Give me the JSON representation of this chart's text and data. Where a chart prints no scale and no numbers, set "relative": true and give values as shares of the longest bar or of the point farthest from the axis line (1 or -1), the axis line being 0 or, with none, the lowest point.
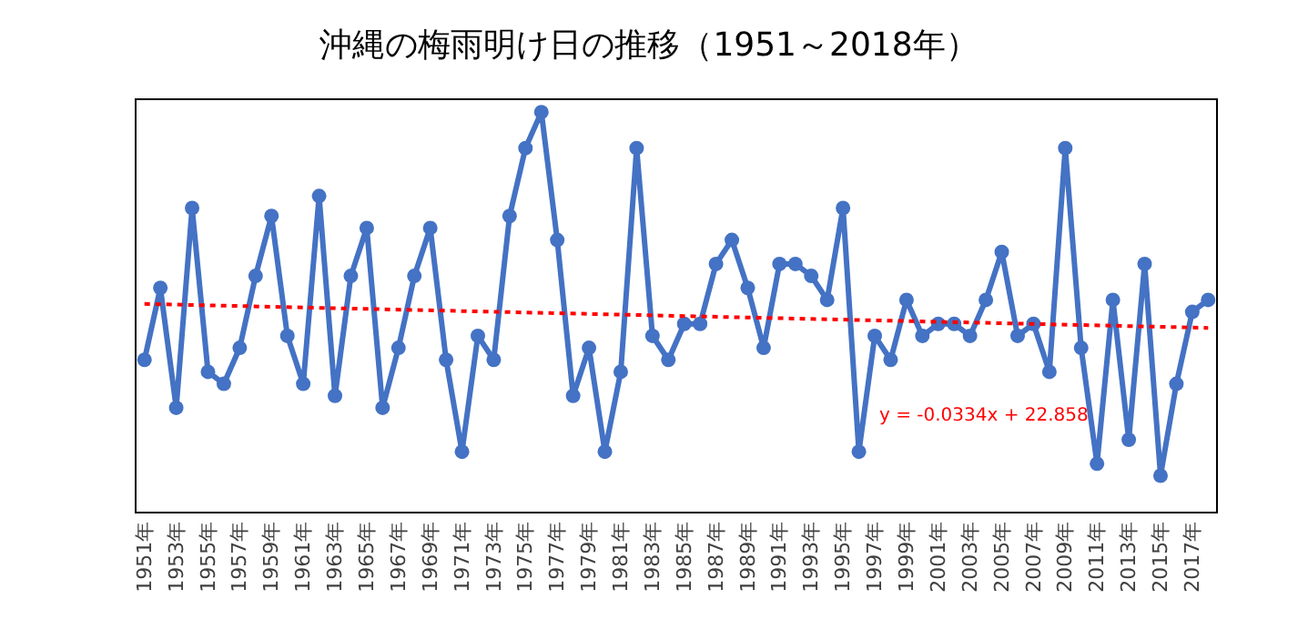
{
  "chart_data": {
    "type": "line",
    "title": "沖縄の梅雨明け日の推移（1951～2018年）",
    "categories": [
      "1951年",
      null,
      "1953年",
      null,
      "1955年",
      null,
      "1957年",
      null,
      "1959年",
      null,
      "1961年",
      null,
      "1963年",
      null,
      "1965年",
      null,
      "1967年",
      null,
      "1969年",
      null,
      "1971年",
      null,
      "1973年",
      null,
      "1975年",
      null,
      "1977年",
      null,
      "1979年",
      null,
      "1981年",
      null,
      "1983年",
      null,
      "1985年",
      null,
      "1987年",
      null,
      "1989年",
      null,
      "1991年",
      null,
      "1993年",
      null,
      "1995年",
      null,
      "1997年",
      null,
      "1999年",
      null,
      "2001年",
      null,
      "2003年",
      null,
      "2005年",
      null,
      "2007年",
      null,
      "2009年",
      null,
      "2011年",
      null,
      "2013年",
      null,
      "2015年",
      null,
      "2017年",
      null
    ],
    "relative": true,
    "series": [
      {
        "color": "#4472c4",
        "marker": "circle",
        "line_style": "solid",
        "values": [
          0.38,
          0.56,
          0.26,
          0.76,
          0.35,
          0.32,
          0.41,
          0.59,
          0.74,
          0.44,
          0.32,
          0.79,
          0.29,
          0.59,
          0.71,
          0.26,
          0.41,
          0.59,
          0.71,
          0.38,
          0.15,
          0.44,
          0.38,
          0.74,
          0.91,
          1,
          0.68,
          0.29,
          0.41,
          0.15,
          0.35,
          0.91,
          0.44,
          0.38,
          0.47,
          0.47,
          0.62,
          0.68,
          0.56,
          0.41,
          0.62,
          0.62,
          0.59,
          0.53,
          0.76,
          0.15,
          0.44,
          0.38,
          0.53,
          0.44,
          0.47,
          0.47,
          0.44,
          0.53,
          0.65,
          0.44,
          0.47,
          0.35,
          0.91,
          0.41,
          0.12,
          0.53,
          0.18,
          0.62,
          0.09,
          0.32,
          0.5,
          0.53
        ]
      },
      {
        "color": "#ff0000",
        "marker": "none",
        "line_style": "dotted",
        "values": [
          0.52,
          null,
          null,
          null,
          null,
          null,
          null,
          null,
          null,
          null,
          null,
          null,
          null,
          null,
          null,
          null,
          null,
          null,
          null,
          null,
          null,
          null,
          null,
          null,
          null,
          null,
          null,
          null,
          null,
          null,
          null,
          null,
          null,
          null,
          null,
          null,
          null,
          null,
          null,
          null,
          null,
          null,
          null,
          null,
          null,
          null,
          null,
          null,
          null,
          null,
          null,
          null,
          null,
          null,
          null,
          null,
          null,
          null,
          null,
          null,
          null,
          null,
          null,
          null,
          null,
          null,
          null,
          0.46
        ]
      }
    ],
    "legend": false,
    "annotations": [
      "y = -0.0334x + 22.858"
    ]
  }
}
